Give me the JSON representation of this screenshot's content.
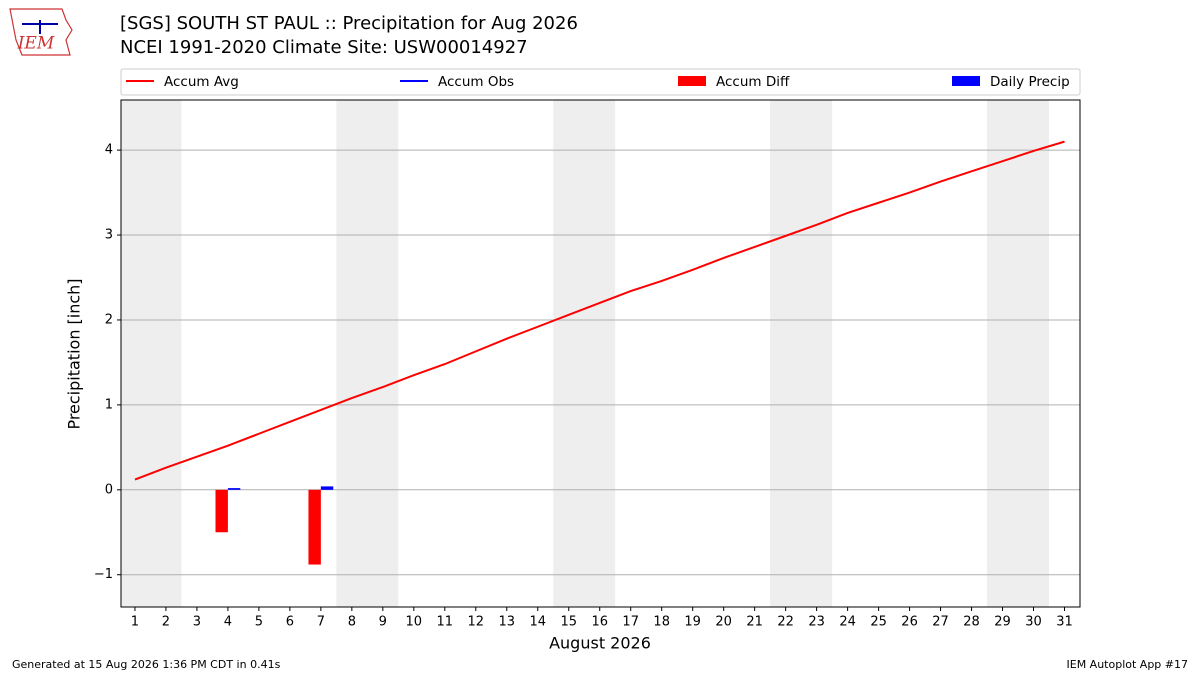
{
  "chart_data": {
    "type": "line",
    "title": "[SGS] SOUTH ST PAUL :: Precipitation for Aug 2026",
    "subtitle": "NCEI 1991-2020 Climate Site: USW00014927",
    "x_label": "August 2026",
    "y_label": "Precipitation [inch]",
    "x": [
      1,
      2,
      3,
      4,
      5,
      6,
      7,
      8,
      9,
      10,
      11,
      12,
      13,
      14,
      15,
      16,
      17,
      18,
      19,
      20,
      21,
      22,
      23,
      24,
      25,
      26,
      27,
      28,
      29,
      30,
      31
    ],
    "series": [
      {
        "name": "Accum Avg",
        "type": "line",
        "color": "#ff0000",
        "values": [
          0.12,
          0.26,
          0.39,
          0.52,
          0.66,
          0.8,
          0.94,
          1.08,
          1.21,
          1.35,
          1.48,
          1.63,
          1.78,
          1.92,
          2.06,
          2.2,
          2.34,
          2.46,
          2.59,
          2.73,
          2.86,
          2.99,
          3.12,
          3.26,
          3.38,
          3.5,
          3.63,
          3.75,
          3.87,
          3.99,
          4.1
        ]
      },
      {
        "name": "Accum Obs",
        "type": "line",
        "color": "#0000ff",
        "values": [
          null,
          null,
          null,
          null,
          null,
          null,
          null,
          null,
          null,
          null,
          null,
          null,
          null,
          null,
          null,
          null,
          null,
          null,
          null,
          null,
          null,
          null,
          null,
          null,
          null,
          null,
          null,
          null,
          null,
          null,
          null
        ]
      },
      {
        "name": "Accum Diff",
        "type": "bar",
        "color": "#ff0000",
        "values": [
          null,
          null,
          null,
          -0.5,
          null,
          null,
          -0.88,
          null,
          null,
          null,
          null,
          null,
          null,
          null,
          null,
          null,
          null,
          null,
          null,
          null,
          null,
          null,
          null,
          null,
          null,
          null,
          null,
          null,
          null,
          null,
          null
        ]
      },
      {
        "name": "Daily Precip",
        "type": "bar",
        "color": "#0000ff",
        "values": [
          null,
          null,
          null,
          0.02,
          null,
          null,
          0.04,
          null,
          null,
          null,
          null,
          null,
          null,
          null,
          null,
          null,
          null,
          null,
          null,
          null,
          null,
          null,
          null,
          null,
          null,
          null,
          null,
          null,
          null,
          null,
          null
        ]
      }
    ],
    "shaded_spans": [
      [
        0.5,
        2.5
      ],
      [
        7.5,
        9.5
      ],
      [
        14.5,
        16.5
      ],
      [
        21.5,
        23.5
      ],
      [
        28.5,
        30.5
      ]
    ],
    "xlim": [
      0.55,
      31.5
    ],
    "ylim": [
      -1.38,
      4.59
    ],
    "xticks": [
      1,
      2,
      3,
      4,
      5,
      6,
      7,
      8,
      9,
      10,
      11,
      12,
      13,
      14,
      15,
      16,
      17,
      18,
      19,
      20,
      21,
      22,
      23,
      24,
      25,
      26,
      27,
      28,
      29,
      30,
      31
    ],
    "yticks": [
      {
        "value": -1,
        "label": "−1"
      },
      0,
      1,
      2,
      3,
      4
    ],
    "grid": true
  },
  "logo_text": "IEM",
  "footer_left": "Generated at 15 Aug 2026 1:36 PM CDT in 0.41s",
  "footer_right": "IEM Autoplot App #17"
}
